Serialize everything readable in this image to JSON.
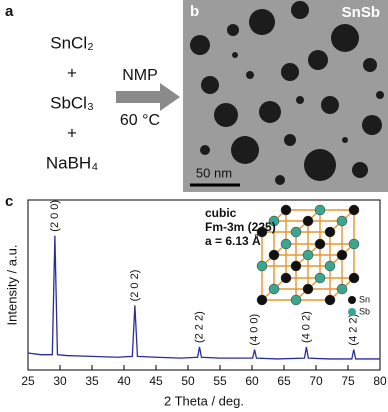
{
  "panel_a": {
    "label": "a",
    "reactants": [
      "SnCl₂",
      "+",
      "SbCl₃",
      "+",
      "NaBH₄"
    ],
    "solvent": "NMP",
    "temperature": "60 °C"
  },
  "panel_b": {
    "label": "b",
    "title": "SnSb",
    "scale_bar": "50 nm"
  },
  "chart_data": {
    "type": "line",
    "panel_label": "c",
    "xlabel": "2 Theta / deg.",
    "ylabel": "Intensity / a.u.",
    "x": [
      25,
      27,
      28.8,
      29.2,
      29.6,
      31,
      35,
      39,
      41.3,
      41.7,
      42.1,
      45,
      49,
      51.5,
      51.8,
      52.1,
      55,
      60.1,
      60.4,
      60.7,
      64,
      68.2,
      68.5,
      68.8,
      72,
      75.6,
      75.9,
      76.2,
      78,
      80
    ],
    "series": [
      {
        "color": "#2b2ba0",
        "values": [
          10,
          9,
          9,
          79,
          9,
          8.5,
          8,
          7.5,
          8,
          38,
          8,
          7.5,
          7,
          7.5,
          13.5,
          7.5,
          7,
          7,
          12,
          7,
          6.5,
          7,
          13.5,
          7,
          6.5,
          6.5,
          12,
          6.5,
          6.5,
          6.5
        ]
      }
    ],
    "xlim": [
      25,
      80
    ],
    "xticks": [
      25,
      30,
      35,
      40,
      45,
      50,
      55,
      60,
      65,
      70,
      75,
      80
    ],
    "ylim": [
      0,
      100
    ],
    "peaks": [
      {
        "label": "(2 0 0)",
        "x": 29.2
      },
      {
        "label": "(2 0 2)",
        "x": 41.7
      },
      {
        "label": "(2 2 2)",
        "x": 51.8
      },
      {
        "label": "(4 0 0)",
        "x": 60.4
      },
      {
        "label": "(4 0 2)",
        "x": 68.5
      },
      {
        "label": "(4 2 2)",
        "x": 75.9
      }
    ],
    "annotations": [
      "cubic",
      "Fm-3m (225)",
      "a = 6.13 Å"
    ],
    "structure_legend": [
      {
        "name": "Sn",
        "color": "#111111"
      },
      {
        "name": "Sb",
        "color": "#3aa68f"
      }
    ]
  }
}
